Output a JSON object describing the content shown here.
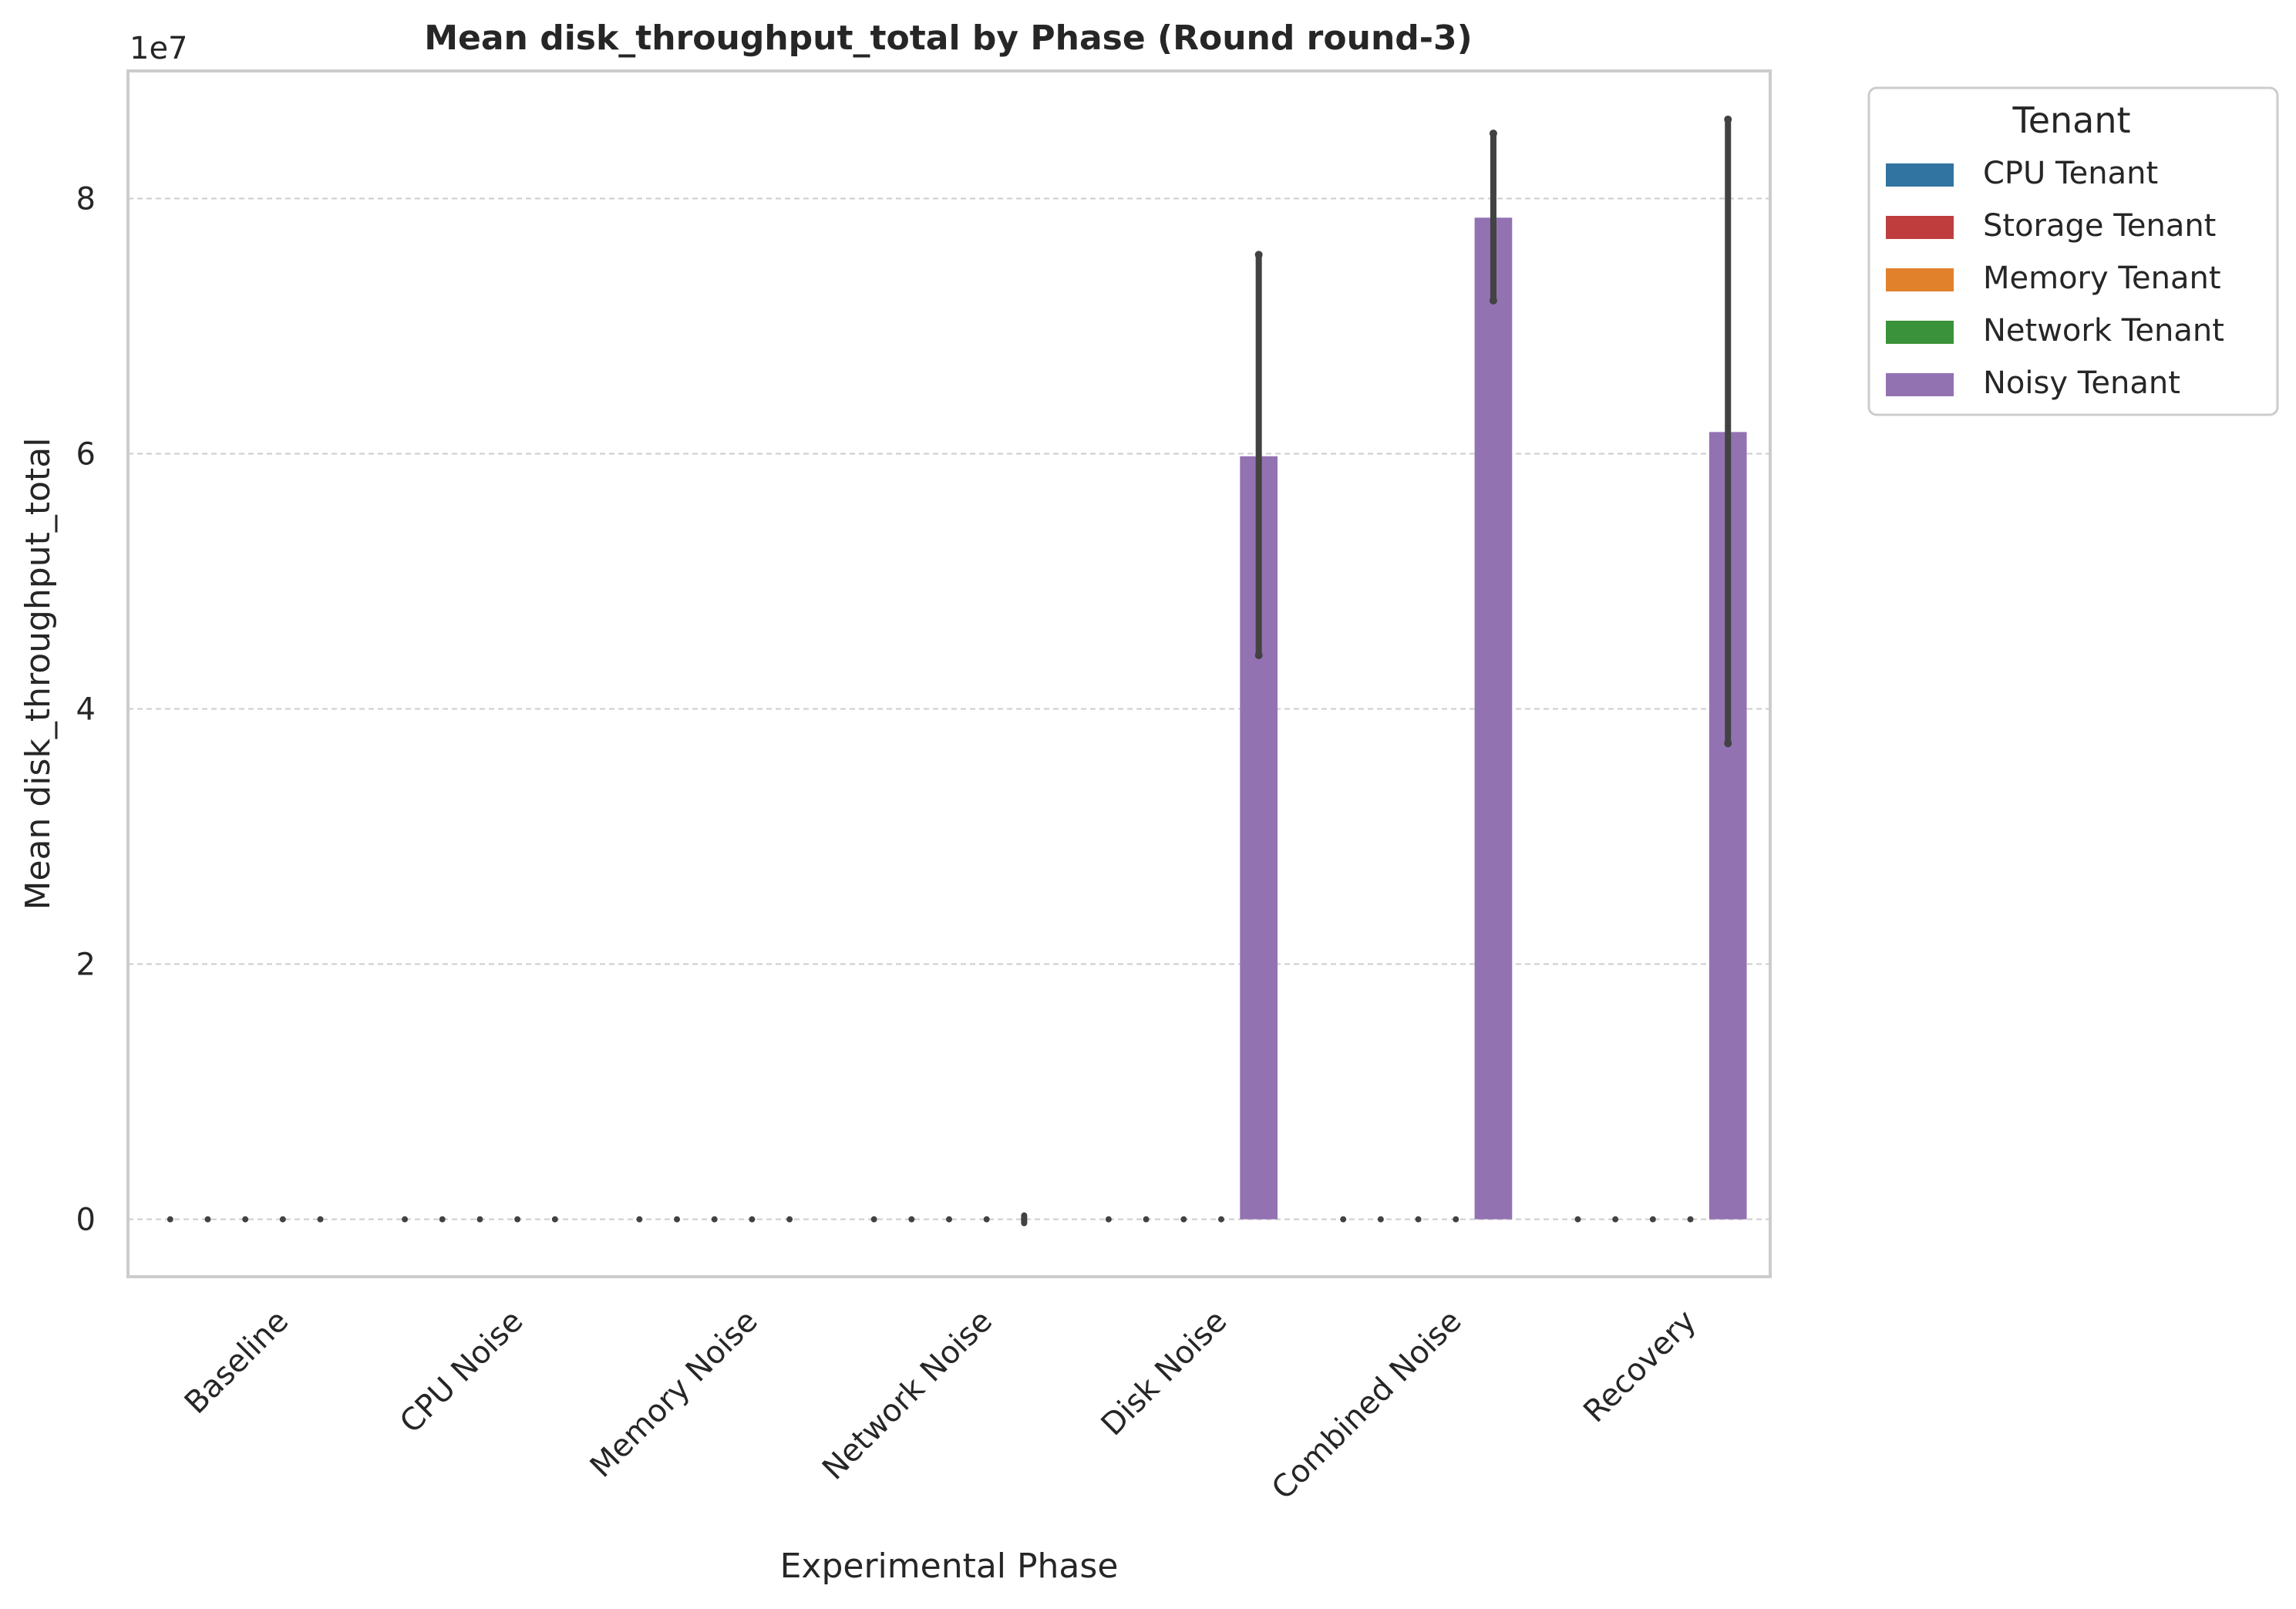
{
  "chart_data": {
    "type": "bar",
    "title": "Mean disk_throughput_total by Phase (Round round-3)",
    "xlabel": "Experimental Phase",
    "ylabel": "Mean disk_throughput_total",
    "y_offset_label": "1e7",
    "y_scale": 10000000,
    "ylim": [
      -0.45,
      9.0
    ],
    "yticks": [
      0,
      2,
      4,
      6,
      8
    ],
    "grid": "y-dashed",
    "categories": [
      "Baseline",
      "CPU Noise",
      "Memory Noise",
      "Network Noise",
      "Disk Noise",
      "Combined Noise",
      "Recovery"
    ],
    "legend": {
      "title": "Tenant",
      "placement": "outside-top-right"
    },
    "series": [
      {
        "name": "CPU Tenant",
        "color": "#3274a1",
        "values": [
          0,
          0,
          0,
          0,
          0,
          0,
          0
        ],
        "ci": [
          [
            0,
            0
          ],
          [
            0,
            0
          ],
          [
            0,
            0
          ],
          [
            0,
            0
          ],
          [
            0,
            0
          ],
          [
            0,
            0
          ],
          [
            0,
            0
          ]
        ]
      },
      {
        "name": "Storage Tenant",
        "color": "#c03d3e",
        "values": [
          0,
          0,
          0,
          0,
          0,
          0,
          0
        ],
        "ci": [
          [
            0,
            0
          ],
          [
            0,
            0
          ],
          [
            0,
            0
          ],
          [
            0,
            0
          ],
          [
            0,
            0
          ],
          [
            0,
            0
          ],
          [
            0,
            0
          ]
        ]
      },
      {
        "name": "Memory Tenant",
        "color": "#e1812c",
        "values": [
          0,
          0,
          0,
          0,
          0,
          0,
          0
        ],
        "ci": [
          [
            0,
            0
          ],
          [
            0,
            0
          ],
          [
            0,
            0
          ],
          [
            0,
            0
          ],
          [
            0,
            0
          ],
          [
            0,
            0
          ],
          [
            0,
            0
          ]
        ]
      },
      {
        "name": "Network Tenant",
        "color": "#3a923a",
        "values": [
          0,
          0,
          0,
          0,
          0,
          0,
          0
        ],
        "ci": [
          [
            0,
            0
          ],
          [
            0,
            0
          ],
          [
            0,
            0
          ],
          [
            0,
            0
          ],
          [
            0,
            0
          ],
          [
            0,
            0
          ],
          [
            0,
            0
          ]
        ]
      },
      {
        "name": "Noisy Tenant",
        "color": "#9372b2",
        "values": [
          0,
          0,
          0,
          0,
          5.98,
          7.85,
          6.17
        ],
        "ci": [
          [
            0,
            0
          ],
          [
            0,
            0
          ],
          [
            0,
            0
          ],
          [
            -0.03,
            0.03
          ],
          [
            4.42,
            7.56
          ],
          [
            7.2,
            8.51
          ],
          [
            3.73,
            8.62
          ]
        ]
      }
    ]
  }
}
